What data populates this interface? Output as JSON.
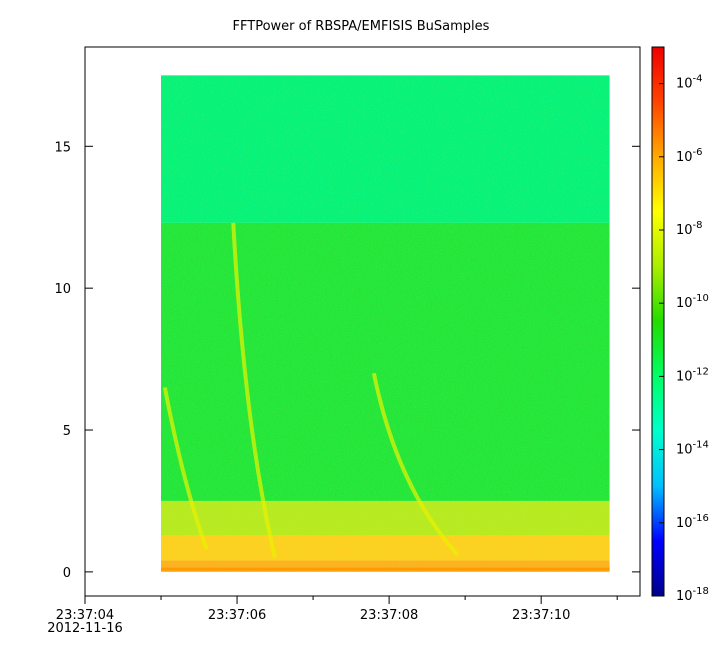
{
  "chart_data": {
    "type": "heatmap",
    "title": "FFTPower of RBSPA/EMFISIS  BuSamples",
    "xaxis": {
      "range": [
        "23:37:04",
        "23:37:11.3"
      ],
      "tick_labels": [
        "23:37:04",
        "23:37:06",
        "23:37:08",
        "23:37:10"
      ],
      "tick_values_s": [
        4,
        6,
        8,
        10
      ],
      "minor_ticks_s": [
        5,
        7,
        9,
        11
      ],
      "date_label": "2012-11-16",
      "data_range": [
        "23:37:05",
        "23:37:10.9"
      ]
    },
    "yaxis": {
      "range": [
        -0.85,
        18.5
      ],
      "tick_labels": [
        "0",
        "5",
        "10",
        "15"
      ],
      "tick_values": [
        0,
        5,
        10,
        15
      ],
      "data_range": [
        0,
        17.5
      ]
    },
    "colorbar": {
      "scale": "log",
      "range": [
        1e-18,
        0.001
      ],
      "tick_labels": [
        {
          "base": "10",
          "exp": "-4",
          "value": 0.0001
        },
        {
          "base": "10",
          "exp": "-6",
          "value": 1e-06
        },
        {
          "base": "10",
          "exp": "-8",
          "value": 1e-08
        },
        {
          "base": "10",
          "exp": "-10",
          "value": 1e-10
        },
        {
          "base": "10",
          "exp": "-12",
          "value": 1e-12
        },
        {
          "base": "10",
          "exp": "-14",
          "value": 1e-14
        },
        {
          "base": "10",
          "exp": "-16",
          "value": 1e-16
        },
        {
          "base": "10",
          "exp": "-18",
          "value": 1e-18
        }
      ],
      "colormap": [
        "#00008b",
        "#0000ff",
        "#00bfff",
        "#00ffcc",
        "#00ff66",
        "#22dd00",
        "#aaee00",
        "#ffff00",
        "#ffaa00",
        "#ff4400",
        "#ee0000"
      ]
    },
    "spectrum": {
      "bands": [
        {
          "freq_range": [
            12.3,
            17.5
          ],
          "log_power": -11.3,
          "color": "#05f27a"
        },
        {
          "freq_range": [
            2.5,
            12.3
          ],
          "log_power": -10.6,
          "color": "#22e63a"
        },
        {
          "freq_range": [
            1.3,
            2.5
          ],
          "log_power": -9.2,
          "color": "#b8ea20"
        },
        {
          "freq_range": [
            0.4,
            1.3
          ],
          "log_power": -7.8,
          "color": "#ffd020"
        },
        {
          "freq_range": [
            0,
            0.4
          ],
          "log_power": -7.0,
          "color": "#ffb020"
        }
      ],
      "bursts": [
        {
          "times": [
            "23:37:05.95",
            "23:37:06.1",
            "23:37:06.5"
          ],
          "freqs": [
            12.3,
            5.0,
            0.5
          ],
          "log_power": -9.0
        },
        {
          "times": [
            "23:37:07.8",
            "23:37:08.1",
            "23:37:08.9"
          ],
          "freqs": [
            7.0,
            3.0,
            0.6
          ],
          "log_power": -9.0
        },
        {
          "times": [
            "23:37:05.05",
            "23:37:05.3",
            "23:37:05.6"
          ],
          "freqs": [
            6.5,
            3.0,
            0.8
          ],
          "log_power": -9.3
        }
      ]
    }
  }
}
